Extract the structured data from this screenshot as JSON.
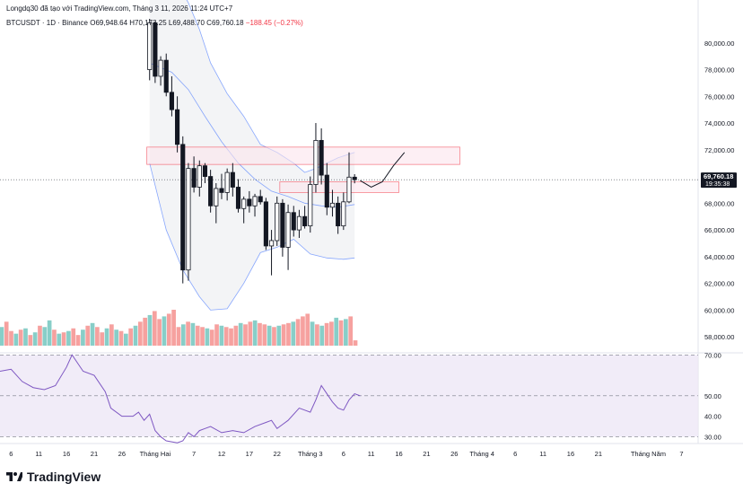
{
  "header": {
    "published_by": "Longdq30 đã tạo với TradingView.com, Tháng 3 11, 2026 11:24 UTC+7"
  },
  "symbol_line": {
    "symbol": "BTCUSDT · 1D · Binance",
    "open": "O69,948.64",
    "high": "H70,173.25",
    "low": "L69,488.70",
    "close": "C69,760.18",
    "change": "−188.45 (−0.27%)"
  },
  "price_badge": {
    "price": "69,760.18",
    "countdown": "19:35:38"
  },
  "brand": {
    "name": "TradingView"
  },
  "colors": {
    "up": "#ffffff",
    "up_border": "#131722",
    "down": "#131722",
    "bb": "#2962ff",
    "bb_fill": "#d1d4dc",
    "zone": "#f23645",
    "rsi": "#7e57c2",
    "rsi_band": "#ede7f6",
    "vol_up": "#26a69a",
    "vol_down": "#ef5350"
  },
  "chart_data": [
    {
      "type": "candlestick",
      "title": "BTCUSDT · 1D · Binance",
      "ylim": [
        57000,
        82000
      ],
      "y_ticks": [
        "80,000.00",
        "78,000.00",
        "76,000.00",
        "74,000.00",
        "72,000.00",
        "70,000.00",
        "68,000.00",
        "66,000.00",
        "64,000.00",
        "62,000.00",
        "60,000.00",
        "58,000.00"
      ],
      "y_tick_values": [
        80000,
        78000,
        76000,
        74000,
        72000,
        70000,
        68000,
        66000,
        64000,
        62000,
        60000,
        58000
      ],
      "x_ticks": [
        "6",
        "11",
        "16",
        "21",
        "26",
        "Tháng Hai",
        "7",
        "12",
        "17",
        "22",
        "Tháng 3",
        "6",
        "11",
        "16",
        "21",
        "26",
        "Tháng 4",
        "6",
        "11",
        "16",
        "21",
        "Tháng Năm",
        "7"
      ],
      "x_tick_days": [
        -26,
        -21,
        -16,
        -11,
        -6,
        0,
        7,
        12,
        17,
        22,
        28,
        34,
        39,
        44,
        49,
        54,
        59,
        65,
        70,
        75,
        80,
        89,
        95
      ],
      "x_day_range": [
        -28,
        98
      ],
      "candles": [
        {
          "d": -1,
          "o": 78000,
          "h": 81800,
          "l": 77200,
          "c": 81500
        },
        {
          "d": 0,
          "o": 81500,
          "h": 81600,
          "l": 77000,
          "c": 77500
        },
        {
          "d": 1,
          "o": 77500,
          "h": 79000,
          "l": 76800,
          "c": 78700
        },
        {
          "d": 2,
          "o": 78700,
          "h": 79200,
          "l": 76000,
          "c": 76300
        },
        {
          "d": 3,
          "o": 76300,
          "h": 77500,
          "l": 74500,
          "c": 75000
        },
        {
          "d": 4,
          "o": 75000,
          "h": 76000,
          "l": 71800,
          "c": 72400
        },
        {
          "d": 5,
          "o": 72400,
          "h": 73000,
          "l": 62000,
          "c": 63000
        },
        {
          "d": 6,
          "o": 63000,
          "h": 71000,
          "l": 62200,
          "c": 70600
        },
        {
          "d": 7,
          "o": 70600,
          "h": 71500,
          "l": 68800,
          "c": 69200
        },
        {
          "d": 8,
          "o": 69200,
          "h": 71200,
          "l": 68500,
          "c": 70800
        },
        {
          "d": 9,
          "o": 70800,
          "h": 71000,
          "l": 69500,
          "c": 70000
        },
        {
          "d": 10,
          "o": 70000,
          "h": 70500,
          "l": 67300,
          "c": 67800
        },
        {
          "d": 11,
          "o": 67800,
          "h": 69500,
          "l": 66500,
          "c": 69100
        },
        {
          "d": 12,
          "o": 69100,
          "h": 70200,
          "l": 68300,
          "c": 68800
        },
        {
          "d": 13,
          "o": 68800,
          "h": 70600,
          "l": 68200,
          "c": 70300
        },
        {
          "d": 14,
          "o": 70300,
          "h": 71000,
          "l": 68500,
          "c": 69200
        },
        {
          "d": 15,
          "o": 69200,
          "h": 69800,
          "l": 67300,
          "c": 67600
        },
        {
          "d": 16,
          "o": 67600,
          "h": 68500,
          "l": 66500,
          "c": 68300
        },
        {
          "d": 17,
          "o": 68300,
          "h": 68900,
          "l": 67300,
          "c": 67800
        },
        {
          "d": 18,
          "o": 67800,
          "h": 68700,
          "l": 67000,
          "c": 68500
        },
        {
          "d": 19,
          "o": 68500,
          "h": 69000,
          "l": 67900,
          "c": 68100
        },
        {
          "d": 20,
          "o": 68100,
          "h": 68400,
          "l": 64500,
          "c": 64800
        },
        {
          "d": 21,
          "o": 64800,
          "h": 66000,
          "l": 62600,
          "c": 65200
        },
        {
          "d": 22,
          "o": 65200,
          "h": 68500,
          "l": 64800,
          "c": 68000
        },
        {
          "d": 23,
          "o": 68000,
          "h": 68300,
          "l": 64000,
          "c": 64700
        },
        {
          "d": 24,
          "o": 64700,
          "h": 67900,
          "l": 63000,
          "c": 67300
        },
        {
          "d": 25,
          "o": 67300,
          "h": 67800,
          "l": 65500,
          "c": 66000
        },
        {
          "d": 26,
          "o": 66000,
          "h": 67500,
          "l": 65400,
          "c": 67000
        },
        {
          "d": 27,
          "o": 67000,
          "h": 67800,
          "l": 66100,
          "c": 66300
        },
        {
          "d": 28,
          "o": 66300,
          "h": 70000,
          "l": 65800,
          "c": 69400
        },
        {
          "d": 29,
          "o": 69400,
          "h": 74000,
          "l": 68800,
          "c": 72700
        },
        {
          "d": 30,
          "o": 72700,
          "h": 73600,
          "l": 69400,
          "c": 70100
        },
        {
          "d": 31,
          "o": 70100,
          "h": 71000,
          "l": 67100,
          "c": 67700
        },
        {
          "d": 32,
          "o": 67700,
          "h": 69000,
          "l": 67000,
          "c": 68000
        },
        {
          "d": 33,
          "o": 68000,
          "h": 68500,
          "l": 65700,
          "c": 66300
        },
        {
          "d": 34,
          "o": 66300,
          "h": 68800,
          "l": 66000,
          "c": 68100
        },
        {
          "d": 35,
          "o": 68100,
          "h": 71800,
          "l": 68000,
          "c": 69950
        },
        {
          "d": 36,
          "o": 69950,
          "h": 70173,
          "l": 69489,
          "c": 69760
        }
      ],
      "bollinger": {
        "upper": [
          [
            -1,
            86000
          ],
          [
            3,
            85200
          ],
          [
            6,
            83000
          ],
          [
            8,
            81000
          ],
          [
            10,
            78500
          ],
          [
            13,
            76200
          ],
          [
            16,
            74500
          ],
          [
            19,
            72400
          ],
          [
            22,
            71800
          ],
          [
            25,
            71000
          ],
          [
            27,
            70300
          ],
          [
            29,
            70600
          ],
          [
            31,
            71000
          ],
          [
            33,
            71400
          ],
          [
            36,
            71800
          ]
        ],
        "basis": [
          [
            -1,
            78500
          ],
          [
            3,
            77800
          ],
          [
            6,
            76500
          ],
          [
            9,
            74500
          ],
          [
            12,
            72600
          ],
          [
            15,
            71000
          ],
          [
            18,
            69800
          ],
          [
            21,
            68900
          ],
          [
            24,
            68500
          ],
          [
            27,
            68000
          ],
          [
            30,
            67800
          ],
          [
            33,
            67700
          ],
          [
            36,
            67900
          ]
        ],
        "lower": [
          [
            -1,
            71000
          ],
          [
            2,
            66000
          ],
          [
            5,
            63000
          ],
          [
            8,
            61000
          ],
          [
            10,
            60000
          ],
          [
            13,
            60100
          ],
          [
            16,
            62000
          ],
          [
            19,
            64300
          ],
          [
            22,
            64700
          ],
          [
            25,
            65300
          ],
          [
            28,
            64200
          ],
          [
            31,
            63900
          ],
          [
            34,
            63800
          ],
          [
            36,
            63900
          ]
        ]
      },
      "zones": [
        {
          "d0": -1,
          "d1": 36,
          "lo": 70900,
          "hi": 72200,
          "extend_to": 55
        },
        {
          "d0": 23,
          "d1": 36,
          "lo": 68800,
          "hi": 69600,
          "extend_to": 44
        }
      ],
      "projection": [
        [
          37,
          69700
        ],
        [
          39,
          69200
        ],
        [
          41,
          69600
        ],
        [
          43,
          70800
        ],
        [
          45,
          71800
        ]
      ],
      "current_price": 69760.18,
      "volume": {
        "values": [
          14,
          18,
          11,
          9,
          12,
          13,
          8,
          10,
          15,
          14,
          19,
          12,
          9,
          10,
          11,
          13,
          8,
          12,
          15,
          17,
          14,
          10,
          13,
          16,
          12,
          11,
          9,
          13,
          15,
          18,
          21,
          23,
          26,
          20,
          22,
          24,
          27,
          14,
          16,
          18,
          17,
          15,
          14,
          13,
          12,
          16,
          15,
          14,
          13,
          15,
          17,
          16,
          18,
          19,
          17,
          16,
          15,
          14,
          15,
          16,
          17,
          18,
          20,
          22,
          24,
          18,
          16,
          15,
          17,
          18,
          21,
          19,
          20,
          22,
          4
        ],
        "up": [
          true,
          false,
          false,
          true,
          false,
          true,
          false,
          true,
          false,
          true,
          true,
          false,
          true,
          false,
          true,
          false,
          false,
          true,
          false,
          true,
          false,
          false,
          true,
          false,
          true,
          false,
          true,
          false,
          true,
          false,
          false,
          true,
          false,
          false,
          true,
          false,
          false,
          false,
          true,
          false,
          true,
          false,
          false,
          true,
          false,
          false,
          true,
          false,
          false,
          false,
          true,
          false,
          false,
          true,
          false,
          false,
          true,
          false,
          true,
          false,
          false,
          true,
          false,
          false,
          false,
          true,
          false,
          true,
          false,
          false,
          true,
          false,
          true,
          false,
          false
        ]
      }
    },
    {
      "type": "line",
      "title": "RSI",
      "ylim": [
        28,
        71
      ],
      "y_ticks": [
        "70.00",
        "50.00",
        "40.00",
        "30.00"
      ],
      "y_tick_values": [
        70,
        50,
        40,
        30
      ],
      "band": [
        30,
        70
      ],
      "midline": 50,
      "points": [
        [
          -28,
          62
        ],
        [
          -26,
          63
        ],
        [
          -24,
          57
        ],
        [
          -22,
          54
        ],
        [
          -20,
          53
        ],
        [
          -18,
          55
        ],
        [
          -16,
          64
        ],
        [
          -15,
          70
        ],
        [
          -13,
          62
        ],
        [
          -11,
          60
        ],
        [
          -9,
          52
        ],
        [
          -8,
          44
        ],
        [
          -6,
          40
        ],
        [
          -4,
          40
        ],
        [
          -3,
          42
        ],
        [
          -2,
          38
        ],
        [
          -1,
          41
        ],
        [
          0,
          33
        ],
        [
          1,
          30
        ],
        [
          2,
          28
        ],
        [
          4,
          27
        ],
        [
          5,
          28
        ],
        [
          6,
          32
        ],
        [
          7,
          30
        ],
        [
          8,
          33
        ],
        [
          9,
          34
        ],
        [
          10,
          35
        ],
        [
          12,
          32
        ],
        [
          14,
          33
        ],
        [
          16,
          32
        ],
        [
          18,
          35
        ],
        [
          20,
          37
        ],
        [
          21,
          38
        ],
        [
          22,
          34
        ],
        [
          23,
          36
        ],
        [
          24,
          38
        ],
        [
          26,
          44
        ],
        [
          27,
          43
        ],
        [
          28,
          42
        ],
        [
          29,
          48
        ],
        [
          30,
          55
        ],
        [
          31,
          51
        ],
        [
          32,
          47
        ],
        [
          33,
          44
        ],
        [
          34,
          43
        ],
        [
          35,
          48
        ],
        [
          36,
          51
        ],
        [
          37,
          50
        ]
      ]
    }
  ]
}
